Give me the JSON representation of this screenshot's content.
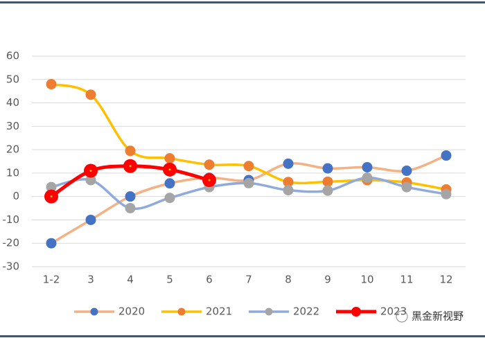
{
  "chart_data": {
    "type": "line",
    "categories": [
      "1-2",
      "3",
      "4",
      "5",
      "6",
      "7",
      "8",
      "9",
      "10",
      "11",
      "12"
    ],
    "series": [
      {
        "name": "2020",
        "color": "#f4b183",
        "marker_color": "#4472c4",
        "values": [
          -20,
          -10,
          0,
          5.6,
          8,
          7,
          14,
          12,
          12.5,
          11,
          17.5
        ]
      },
      {
        "name": "2021",
        "color": "#ffc000",
        "marker_color": "#ed7d31",
        "values": [
          48,
          43.5,
          19.5,
          16.3,
          13.6,
          13,
          6.2,
          6.3,
          7,
          6,
          3
        ]
      },
      {
        "name": "2022",
        "color": "#8faadc",
        "marker_color": "#a5a5a5",
        "values": [
          4,
          7,
          -5,
          -0.6,
          4,
          5.7,
          2.7,
          2.5,
          8,
          4,
          1
        ]
      },
      {
        "name": "2023",
        "color": "#ff0000",
        "marker_color": "#ff0000",
        "values": [
          0,
          11,
          13,
          11.5,
          7,
          null,
          null,
          null,
          null,
          null,
          null
        ]
      }
    ],
    "ylim": [
      -30,
      60
    ],
    "yticks": [
      -30,
      -20,
      -10,
      0,
      10,
      20,
      30,
      40,
      50,
      60
    ],
    "grid": true,
    "watermark": "黑金新视野"
  }
}
